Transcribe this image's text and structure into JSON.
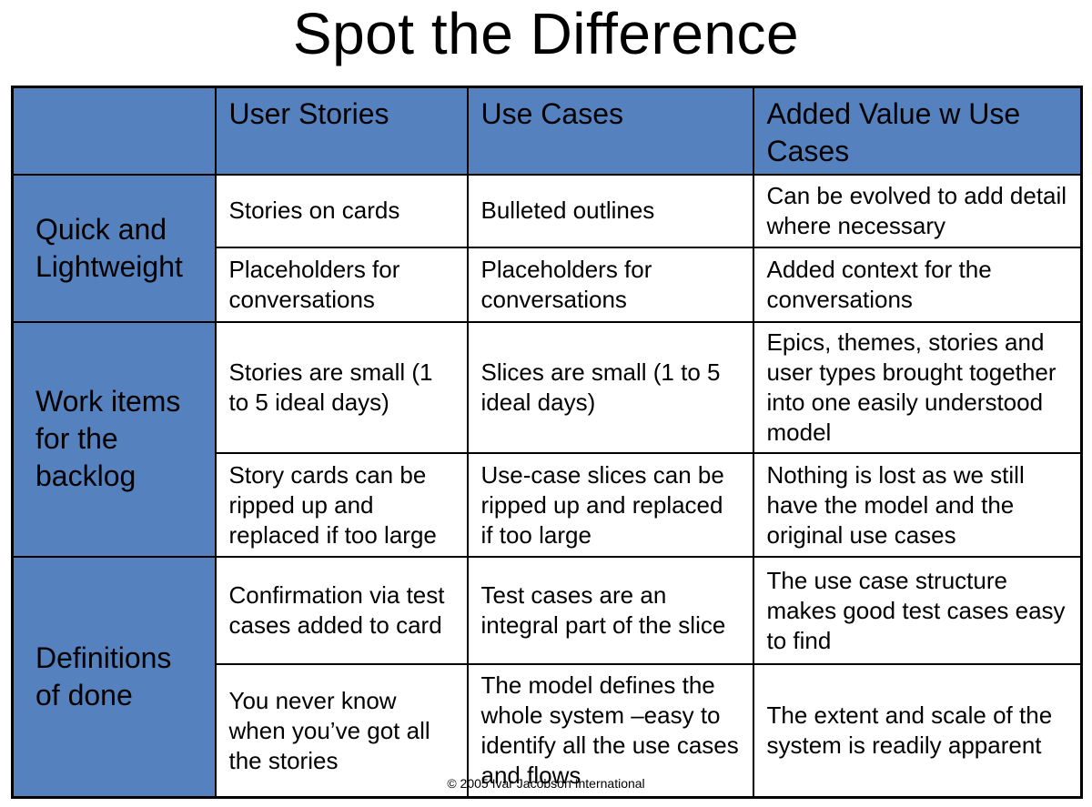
{
  "title": "Spot the Difference",
  "header": {
    "corner": "",
    "col1": "User Stories",
    "col2": "Use Cases",
    "col3": "Added Value w Use Cases"
  },
  "groups": [
    {
      "label": "Quick and Lightweight",
      "rows": [
        [
          "Stories on cards",
          "Bulleted outlines",
          "Can be evolved to add detail where necessary"
        ],
        [
          "Placeholders for conversations",
          "Placeholders for conversations",
          "Added context for the conversations"
        ]
      ]
    },
    {
      "label": "Work items for the backlog",
      "rows": [
        [
          "Stories are small (1 to 5 ideal days)",
          "Slices are small (1 to 5 ideal days)",
          "Epics, themes, stories and user types brought together into one easily understood model"
        ],
        [
          "Story cards can be ripped up and replaced if too large",
          "Use-case slices can be ripped up and replaced if too large",
          "Nothing is lost as we still have the model and the original use cases"
        ]
      ]
    },
    {
      "label": "Definitions of done",
      "rows": [
        [
          "Confirmation via test cases added to card",
          "Test cases are an integral part of the slice",
          "The use case structure makes good test cases easy to find"
        ],
        [
          "You never know when you’ve got all the stories",
          "The model defines the whole system –easy to identify all the use cases and flows",
          "The extent and scale of the system is readily apparent"
        ]
      ]
    }
  ],
  "footer": "© 2005 Ivar Jacobson International",
  "colors": {
    "header_fill": "#5581bf",
    "cell_fill": "#ffffff",
    "border": "#000000"
  }
}
